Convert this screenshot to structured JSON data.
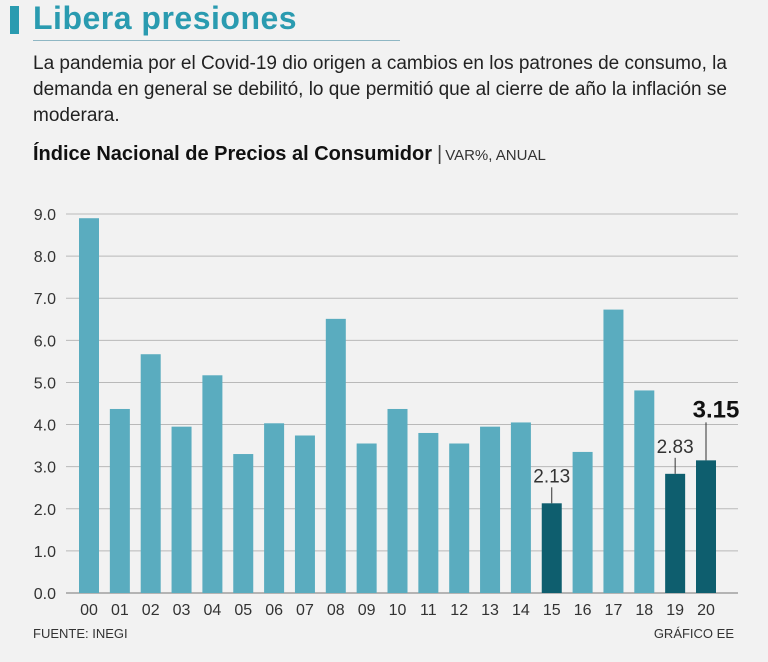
{
  "headline": "Libera presiones",
  "lede": "La pandemia por el Covid-19 dio origen a cambios en los patrones de consumo, la demanda en general se debilitó, lo que permitió que al cierre de año la inflación se moderara.",
  "colors": {
    "accent": "#2a9bb0",
    "bar": "#5aacbf",
    "bar_highlight": "#0e5e6e",
    "grid": "#b9b9b9",
    "background": "#f2f2f2"
  },
  "chart_data": {
    "type": "bar",
    "title": "Índice Nacional de Precios al Consumidor",
    "title_separator": "|",
    "subtitle": "VAR%, ANUAL",
    "xlabel": "",
    "ylabel": "",
    "ylim": [
      0,
      9
    ],
    "grid": true,
    "y_ticks": [
      "0.0",
      "1.0",
      "2.0",
      "3.0",
      "4.0",
      "5.0",
      "6.0",
      "7.0",
      "8.0",
      "9.0"
    ],
    "categories": [
      "00",
      "01",
      "02",
      "03",
      "04",
      "05",
      "06",
      "07",
      "08",
      "09",
      "10",
      "11",
      "12",
      "13",
      "14",
      "15",
      "16",
      "17",
      "18",
      "19",
      "20"
    ],
    "values": [
      8.9,
      4.37,
      5.67,
      3.95,
      5.17,
      3.3,
      4.03,
      3.74,
      6.51,
      3.55,
      4.37,
      3.8,
      3.55,
      3.95,
      4.05,
      2.13,
      3.35,
      6.73,
      4.81,
      2.83,
      3.15
    ],
    "highlighted": [
      "15",
      "19",
      "20"
    ],
    "annotations": [
      {
        "category": "15",
        "label": "2.13",
        "bold": false
      },
      {
        "category": "19",
        "label": "2.83",
        "bold": false
      },
      {
        "category": "20",
        "label": "3.15",
        "bold": true
      }
    ]
  },
  "footer": {
    "source": "FUENTE: INEGI",
    "credit": "GRÁFICO EE"
  }
}
